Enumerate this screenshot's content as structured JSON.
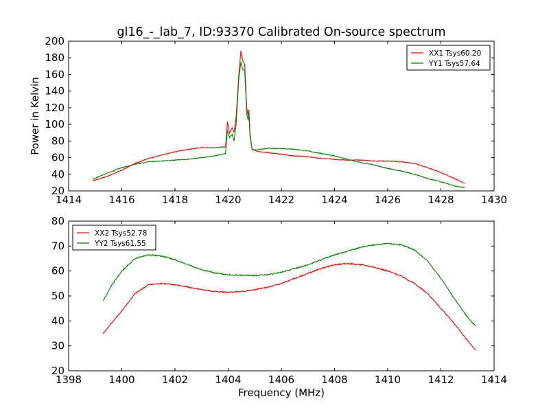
{
  "chart_data": [
    {
      "type": "line",
      "title": "gl16_-_lab_7, ID:93370 Calibrated On-source spectrum",
      "xlabel": "",
      "ylabel": "Power in Kelvin",
      "xlim": [
        1414,
        1430
      ],
      "ylim": [
        20,
        200
      ],
      "xticks": [
        1414,
        1416,
        1418,
        1420,
        1422,
        1424,
        1426,
        1428,
        1430
      ],
      "yticks": [
        20,
        40,
        60,
        80,
        100,
        120,
        140,
        160,
        180,
        200
      ],
      "grid": false,
      "legend_position": "top-right",
      "series": [
        {
          "name": "XX1 Tsys60.20",
          "color": "#ff0000",
          "x": [
            1414.9,
            1415.5,
            1416.0,
            1416.5,
            1417.0,
            1417.5,
            1418.0,
            1418.5,
            1419.0,
            1419.5,
            1419.9,
            1419.97,
            1420.05,
            1420.15,
            1420.22,
            1420.3,
            1420.4,
            1420.48,
            1420.55,
            1420.62,
            1420.7,
            1420.75,
            1420.78,
            1420.82,
            1420.9,
            1421.2,
            1421.5,
            1422.0,
            1422.5,
            1423.0,
            1423.5,
            1424.0,
            1424.5,
            1425.0,
            1425.5,
            1426.0,
            1426.5,
            1427.0,
            1427.5,
            1428.0,
            1428.5,
            1428.9
          ],
          "values": [
            32,
            38,
            45,
            53,
            59,
            63,
            67,
            70,
            72,
            72,
            73,
            103,
            90,
            96,
            90,
            110,
            160,
            188,
            176,
            172,
            120,
            110,
            118,
            90,
            70,
            67,
            66,
            64,
            62,
            61,
            59,
            58,
            57,
            57,
            56,
            56,
            55,
            53,
            48,
            42,
            35,
            29
          ]
        },
        {
          "name": "YY1 Tsys57.64",
          "color": "#008000",
          "x": [
            1414.9,
            1415.5,
            1416.0,
            1416.5,
            1417.0,
            1417.5,
            1418.0,
            1418.5,
            1419.0,
            1419.5,
            1419.9,
            1419.97,
            1420.05,
            1420.15,
            1420.22,
            1420.3,
            1420.4,
            1420.48,
            1420.55,
            1420.62,
            1420.7,
            1420.75,
            1420.78,
            1420.82,
            1420.9,
            1421.2,
            1421.5,
            1422.0,
            1422.5,
            1423.0,
            1423.5,
            1424.0,
            1424.5,
            1425.0,
            1425.5,
            1426.0,
            1426.5,
            1427.0,
            1427.5,
            1428.0,
            1428.5,
            1428.9
          ],
          "values": [
            34,
            42,
            48,
            52,
            55,
            56,
            57,
            58,
            60,
            62,
            65,
            93,
            84,
            88,
            80,
            100,
            155,
            175,
            166,
            165,
            112,
            105,
            115,
            86,
            69,
            70,
            71,
            71,
            70,
            68,
            65,
            62,
            58,
            54,
            51,
            47,
            44,
            40,
            35,
            31,
            26,
            24
          ]
        }
      ]
    },
    {
      "type": "line",
      "title": "",
      "xlabel": "Frequency (MHz)",
      "ylabel": "",
      "xlim": [
        1398,
        1414
      ],
      "ylim": [
        20,
        80
      ],
      "xticks": [
        1398,
        1400,
        1402,
        1404,
        1406,
        1408,
        1410,
        1412,
        1414
      ],
      "yticks": [
        20,
        30,
        40,
        50,
        60,
        70,
        80
      ],
      "grid": false,
      "legend_position": "top-left",
      "series": [
        {
          "name": "XX2 Tsys52.78",
          "color": "#ff0000",
          "x": [
            1399.3,
            1399.6,
            1400.0,
            1400.5,
            1401.0,
            1401.5,
            1402.0,
            1402.5,
            1403.0,
            1403.5,
            1404.0,
            1404.5,
            1405.0,
            1405.5,
            1406.0,
            1406.5,
            1407.0,
            1407.5,
            1408.0,
            1408.5,
            1409.0,
            1409.5,
            1410.0,
            1410.5,
            1411.0,
            1411.5,
            1412.0,
            1412.5,
            1413.0,
            1413.3
          ],
          "values": [
            35,
            39,
            44,
            51,
            54.5,
            55,
            54.5,
            53.5,
            52.5,
            51.8,
            51.5,
            51.8,
            52.5,
            53.5,
            55,
            57,
            59,
            61,
            62.5,
            63,
            62.5,
            61.5,
            60,
            58,
            55,
            51,
            45,
            39,
            32,
            28.5
          ]
        },
        {
          "name": "YY2 Tsys61.55",
          "color": "#008000",
          "x": [
            1399.3,
            1399.6,
            1400.0,
            1400.5,
            1401.0,
            1401.5,
            1402.0,
            1402.5,
            1403.0,
            1403.5,
            1404.0,
            1404.5,
            1405.0,
            1405.5,
            1406.0,
            1406.5,
            1407.0,
            1407.5,
            1408.0,
            1408.5,
            1409.0,
            1409.5,
            1410.0,
            1410.5,
            1411.0,
            1411.5,
            1412.0,
            1412.5,
            1413.0,
            1413.3
          ],
          "values": [
            48,
            54,
            60,
            65,
            66.5,
            66,
            64.5,
            62.5,
            60.5,
            59.2,
            58.5,
            58.3,
            58.2,
            58.5,
            59.5,
            61,
            62.5,
            64.5,
            66.5,
            68,
            69.5,
            70.5,
            71,
            70.5,
            68.5,
            64,
            57,
            49,
            41.5,
            38
          ]
        }
      ]
    }
  ]
}
